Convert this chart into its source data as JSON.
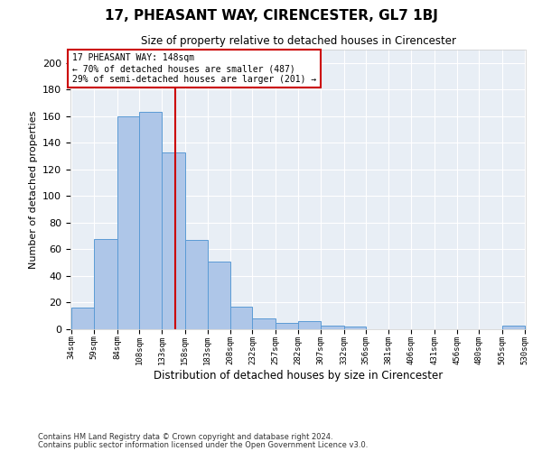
{
  "title": "17, PHEASANT WAY, CIRENCESTER, GL7 1BJ",
  "subtitle": "Size of property relative to detached houses in Cirencester",
  "xlabel": "Distribution of detached houses by size in Cirencester",
  "ylabel": "Number of detached properties",
  "footnote1": "Contains HM Land Registry data © Crown copyright and database right 2024.",
  "footnote2": "Contains public sector information licensed under the Open Government Licence v3.0.",
  "annotation_line1": "17 PHEASANT WAY: 148sqm",
  "annotation_line2": "← 70% of detached houses are smaller (487)",
  "annotation_line3": "29% of semi-detached houses are larger (201) →",
  "property_line_x": 148,
  "bar_edges": [
    34,
    59,
    84,
    108,
    133,
    158,
    183,
    208,
    232,
    257,
    282,
    307,
    332,
    356,
    381,
    406,
    431,
    456,
    480,
    505,
    530
  ],
  "bar_heights": [
    16,
    68,
    160,
    163,
    133,
    67,
    51,
    17,
    8,
    5,
    6,
    3,
    2,
    0,
    0,
    0,
    0,
    0,
    0,
    3
  ],
  "bar_color": "#aec6e8",
  "bar_edge_color": "#5b9bd5",
  "line_color": "#cc0000",
  "bg_color": "#e8eef5",
  "annotation_box_color": "#cc0000",
  "ylim": [
    0,
    210
  ],
  "yticks": [
    0,
    20,
    40,
    60,
    80,
    100,
    120,
    140,
    160,
    180,
    200
  ]
}
